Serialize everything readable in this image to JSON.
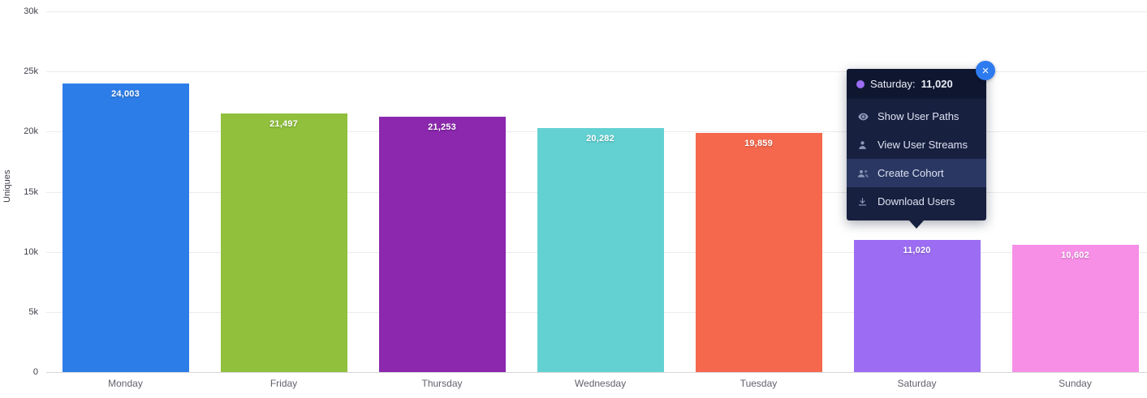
{
  "chart_data": {
    "type": "bar",
    "categories": [
      "Monday",
      "Friday",
      "Thursday",
      "Wednesday",
      "Tuesday",
      "Saturday",
      "Sunday"
    ],
    "values": [
      24003,
      21497,
      21253,
      20282,
      19859,
      11020,
      10602
    ],
    "value_labels": [
      "24,003",
      "21,497",
      "21,253",
      "20,282",
      "19,859",
      "11,020",
      "10,602"
    ],
    "bar_colors": [
      "#2d7de9",
      "#90c03c",
      "#8b28ad",
      "#63d1d2",
      "#f5684d",
      "#9c6df2",
      "#f78fe7"
    ],
    "title": "",
    "xlabel": "",
    "ylabel": "Uniques",
    "ylim": [
      0,
      30000
    ],
    "yticks": [
      "30k",
      "25k",
      "20k",
      "15k",
      "10k",
      "5k",
      "0"
    ],
    "grid": true,
    "legend": false
  },
  "tooltip": {
    "series_label": "Saturday:",
    "value": "11,020",
    "dot_color": "#9c6df2",
    "close_label": "×",
    "items": [
      {
        "label": "Show User Paths",
        "icon": "eye",
        "active": false
      },
      {
        "label": "View User Streams",
        "icon": "user",
        "active": false
      },
      {
        "label": "Create Cohort",
        "icon": "users",
        "active": true
      },
      {
        "label": "Download Users",
        "icon": "download",
        "active": false
      }
    ]
  }
}
